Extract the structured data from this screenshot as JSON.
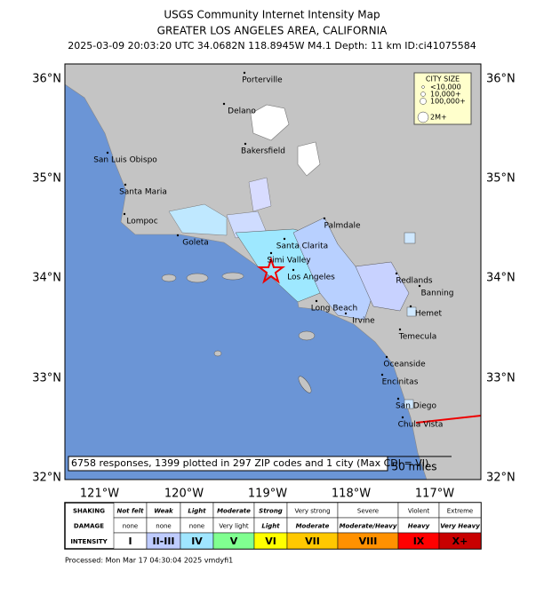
{
  "header": {
    "title": "USGS Community Internet Intensity Map",
    "subtitle": "GREATER LOS ANGELES AREA, CALIFORNIA",
    "info": "2025-03-09 20:03:20 UTC 34.0682N 118.8945W M4.1 Depth: 11 km ID:ci41075584"
  },
  "map": {
    "lat_labels": [
      "36°N",
      "35°N",
      "34°N",
      "33°N",
      "32°N"
    ],
    "lon_labels": [
      "121°W",
      "120°W",
      "119°W",
      "118°W",
      "117°W"
    ],
    "places": [
      "Porterville",
      "Delano",
      "Bakersfield",
      "San Luis Obispo",
      "Santa Maria",
      "Lompoc",
      "Goleta",
      "Palmdale",
      "Santa Clarita",
      "Simi Valley",
      "Los Angeles",
      "Redlands",
      "Banning",
      "Long Beach",
      "Irvine",
      "Hemet",
      "Temecula",
      "Oceanside",
      "Encinitas",
      "San Diego",
      "Chula Vista"
    ],
    "city_size": {
      "title": "CITY SIZE",
      "entries": [
        "<10,000",
        "10,000+",
        "100,000+",
        "2M+"
      ]
    },
    "note": "6758 responses, 1399 plotted in 297 ZIP codes and 1 city (Max CDI = VI)",
    "scale": "50 miles"
  },
  "legend": {
    "row_labels": [
      "SHAKING",
      "DAMAGE",
      "INTENSITY"
    ],
    "shaking": [
      "Not felt",
      "Weak",
      "Light",
      "Moderate",
      "Strong",
      "Very strong",
      "Severe",
      "Violent",
      "Extreme"
    ],
    "damage": [
      "none",
      "none",
      "none",
      "Very light",
      "Light",
      "Moderate",
      "Moderate/Heavy",
      "Heavy",
      "Very Heavy"
    ],
    "intensity": [
      "I",
      "II-III",
      "IV",
      "V",
      "VI",
      "VII",
      "VIII",
      "IX",
      "X+"
    ],
    "colors": [
      "#ffffff",
      "#bfccff",
      "#a0e6ff",
      "#80ff90",
      "#ffff00",
      "#ffc800",
      "#ff9100",
      "#ff0000",
      "#c80000"
    ]
  },
  "footer": {
    "processed": "Processed: Mon Mar 17 04:30:04 2025 vmdyfi1"
  }
}
